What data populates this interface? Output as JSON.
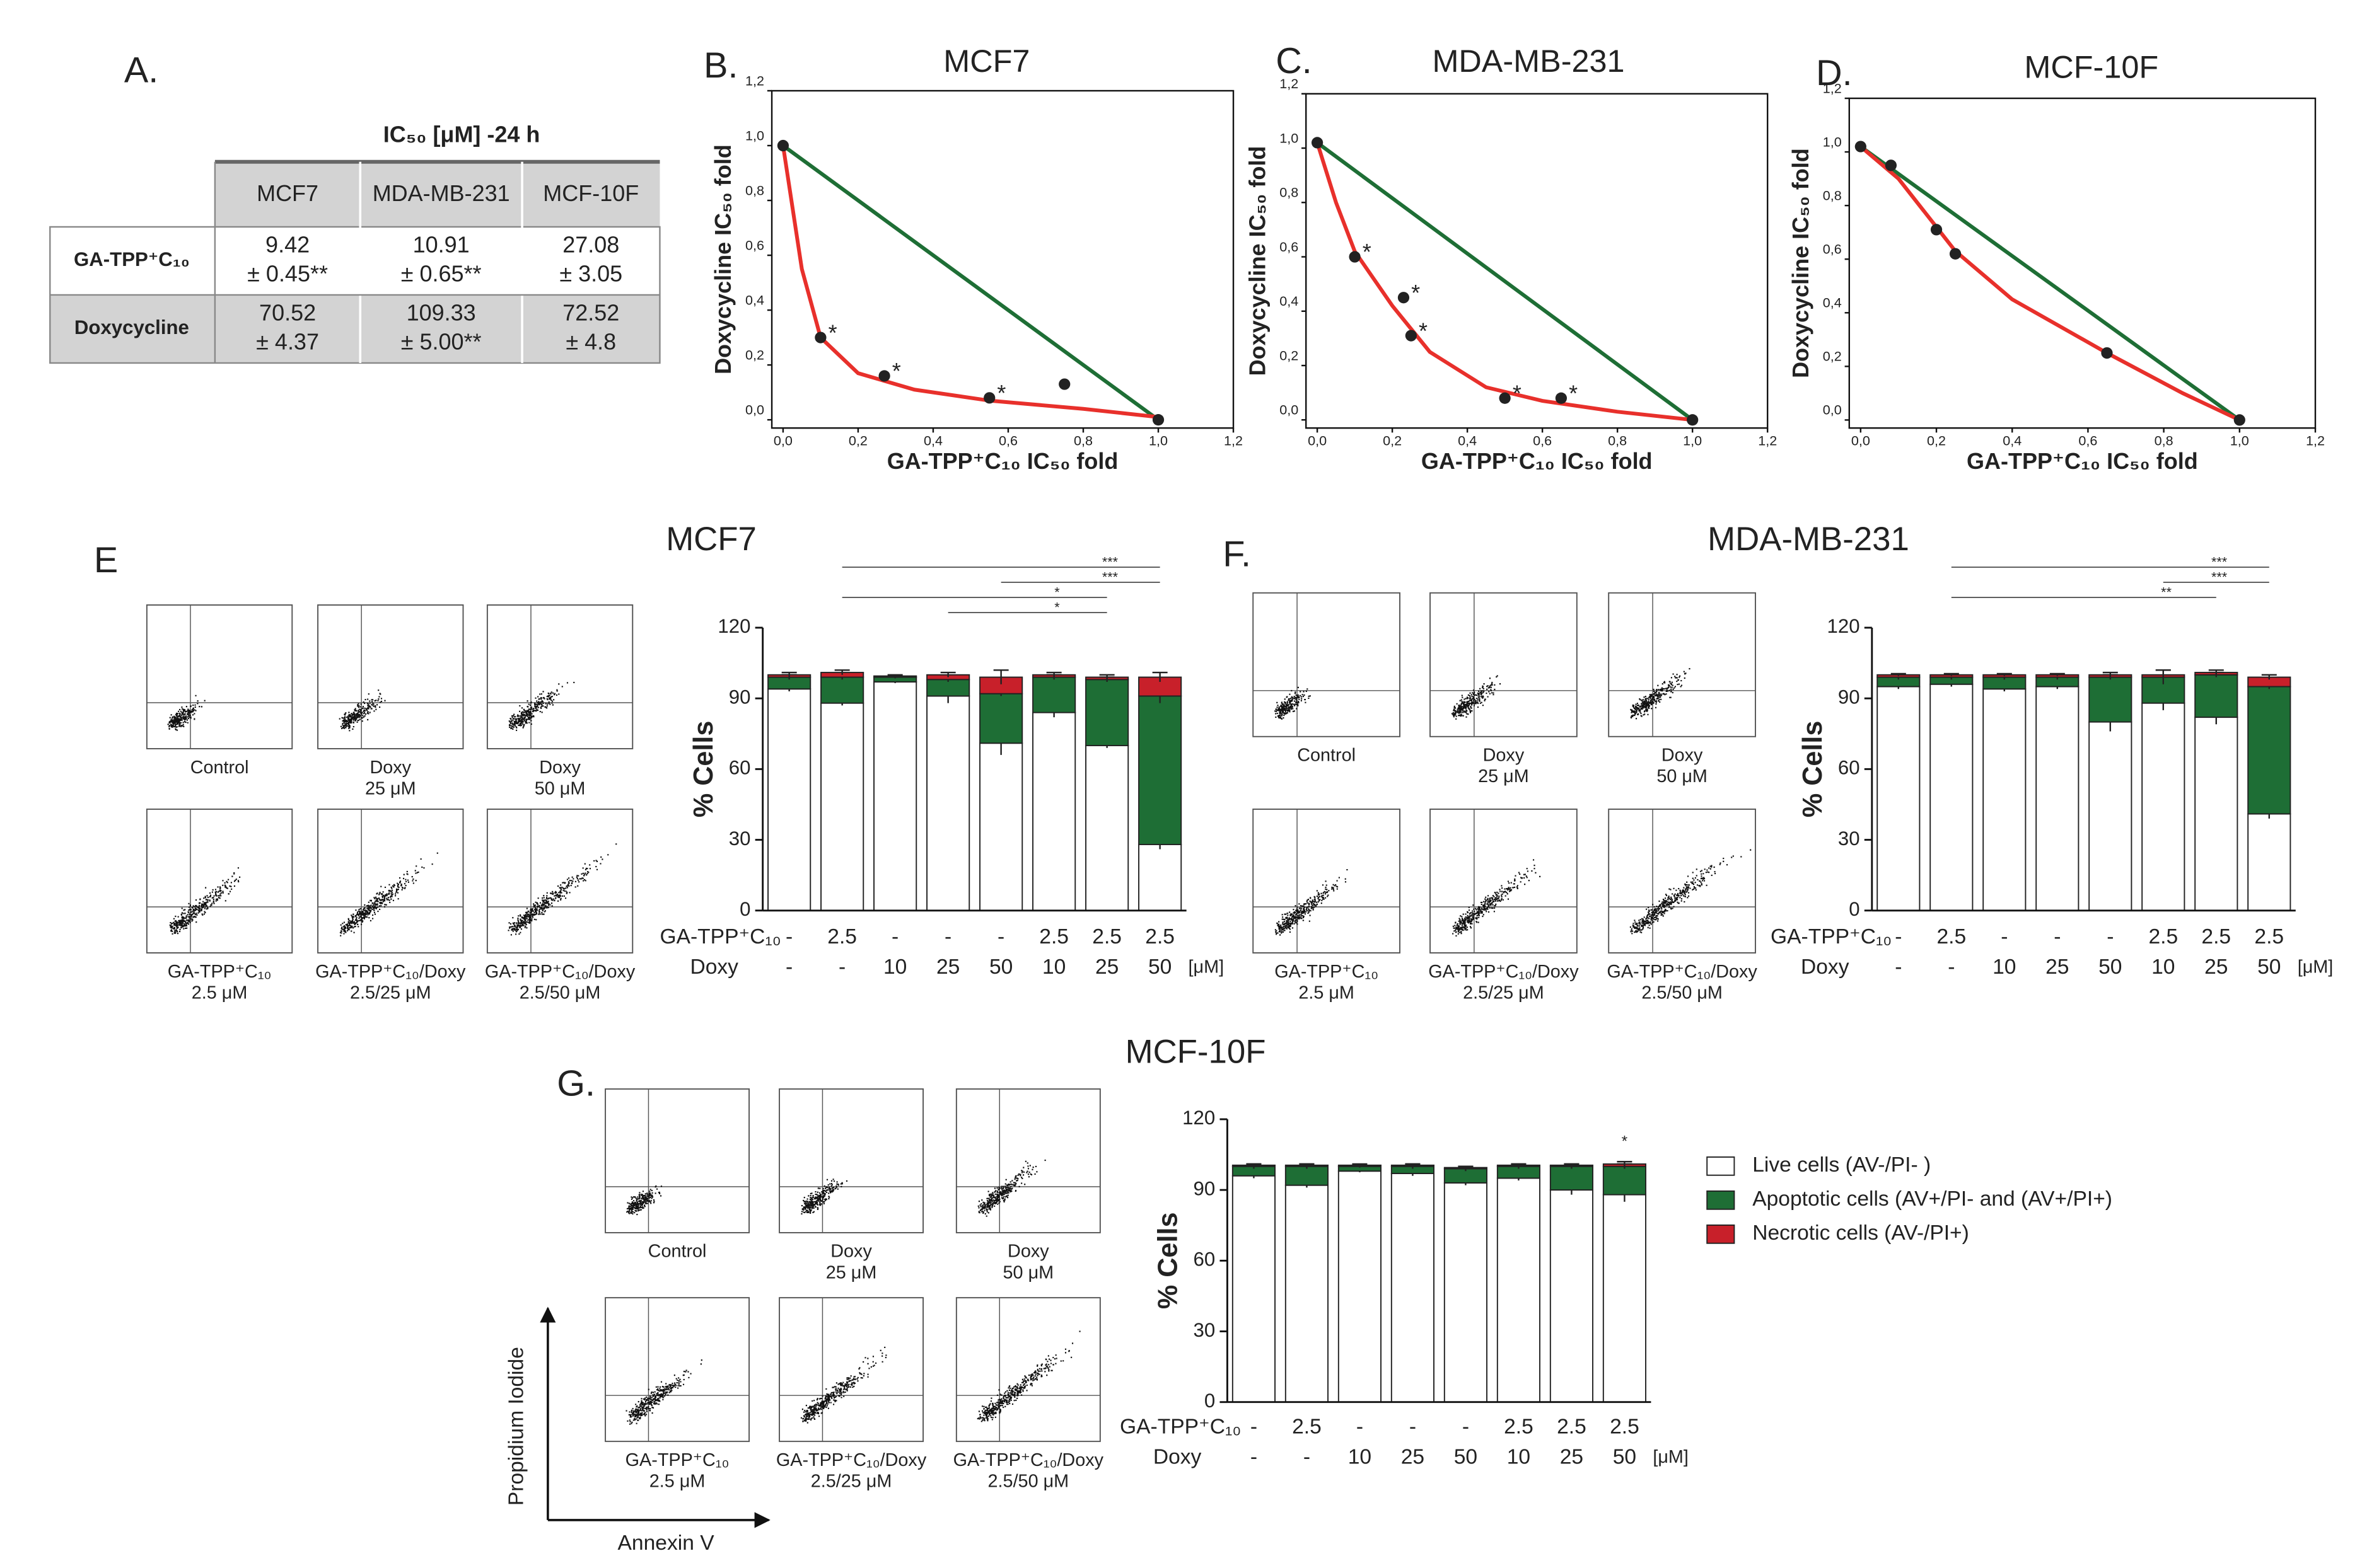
{
  "panel_labels": [
    "A.",
    "B.",
    "C.",
    "D.",
    "E",
    "F.",
    "G."
  ],
  "table": {
    "title": "IC₅₀ [μM] -24 h",
    "columns": [
      "MCF7",
      "MDA-MB-231",
      "MCF-10F"
    ],
    "rows": [
      {
        "label": "GA-TPP⁺C₁₀",
        "cells": [
          [
            "9.42",
            "± 0.45**"
          ],
          [
            "10.91",
            "± 0.65**"
          ],
          [
            "27.08",
            "± 3.05"
          ]
        ]
      },
      {
        "label": "Doxycycline",
        "cells": [
          [
            "70.52",
            "± 4.37"
          ],
          [
            "109.33",
            "± 5.00**"
          ],
          [
            "72.52",
            "± 4.8"
          ]
        ]
      }
    ]
  },
  "flow_panels": [
    {
      "captions": [
        [
          "Control"
        ],
        [
          "Doxy",
          "25 μM"
        ],
        [
          "Doxy",
          "50 μM"
        ],
        [
          "GA-TPP⁺C₁₀",
          "2.5 μM"
        ],
        [
          "GA-TPP⁺C₁₀/Doxy",
          "2.5/25 μM"
        ],
        [
          "GA-TPP⁺C₁₀/Doxy",
          "2.5/50 μM"
        ]
      ]
    },
    {
      "captions": [
        [
          "Control"
        ],
        [
          "Doxy",
          "25 μM"
        ],
        [
          "Doxy",
          "50 μM"
        ],
        [
          "GA-TPP⁺C₁₀",
          "2.5 μM"
        ],
        [
          "GA-TPP⁺C₁₀/Doxy",
          "2.5/25 μM"
        ],
        [
          "GA-TPP⁺C₁₀/Doxy",
          "2.5/50 μM"
        ]
      ]
    },
    {
      "captions": [
        [
          "Control"
        ],
        [
          "Doxy",
          "25 μM"
        ],
        [
          "Doxy",
          "50 μM"
        ],
        [
          "GA-TPP⁺C₁₀",
          "2.5 μM"
        ],
        [
          "GA-TPP⁺C₁₀/Doxy",
          "2.5/25 μM"
        ],
        [
          "GA-TPP⁺C₁₀/Doxy",
          "2.5/50 μM"
        ]
      ],
      "ylabel": "Propidium Iodide",
      "xlabel": "Annexin V"
    }
  ],
  "chart_data": [
    {
      "type": "scatter",
      "title": "MCF7",
      "xlabel": "GA-TPP⁺C₁₀ IC₅₀ fold",
      "ylabel": "Doxycycline IC₅₀ fold",
      "xlim": [
        -0.03,
        1.2
      ],
      "ylim": [
        -0.03,
        1.2
      ],
      "xticks": [
        {
          "value": 0,
          "label": "0,0"
        },
        {
          "value": 0.2,
          "label": "0,2"
        },
        {
          "value": 0.4,
          "label": "0,4"
        },
        {
          "value": 0.6,
          "label": "0,6"
        },
        {
          "value": 0.8,
          "label": "0,8"
        },
        {
          "value": 1,
          "label": "1,0"
        },
        {
          "value": 1.2,
          "label": "1,2"
        }
      ],
      "yticks": [
        {
          "value": 0,
          "label": "0,0"
        },
        {
          "value": 0.2,
          "label": "0,2"
        },
        {
          "value": 0.4,
          "label": "0,4"
        },
        {
          "value": 0.6,
          "label": "0,6"
        },
        {
          "value": 0.8,
          "label": "0,8"
        },
        {
          "value": 1,
          "label": "1,0"
        },
        {
          "value": 1.2,
          "label": "1,2"
        }
      ],
      "series": [
        {
          "style": "line",
          "color": "#1e6e35",
          "x": [
            0,
            1
          ],
          "values": [
            1,
            0
          ]
        },
        {
          "style": "line",
          "color": "#e8302b",
          "x": [
            0,
            0.05,
            0.1,
            0.2,
            0.35,
            0.55,
            0.8,
            1
          ],
          "values": [
            1,
            0.55,
            0.3,
            0.17,
            0.11,
            0.07,
            0.04,
            0.01
          ]
        },
        {
          "style": "points",
          "color": "#222222",
          "x": [
            0,
            0.1,
            0.27,
            0.55,
            0.75,
            1
          ],
          "values": [
            1,
            0.3,
            0.16,
            0.08,
            0.13,
            0
          ],
          "point_labels": [
            null,
            "*",
            "*",
            "*",
            null,
            null
          ]
        }
      ]
    },
    {
      "type": "scatter",
      "title": "MDA-MB-231",
      "xlabel": "GA-TPP⁺C₁₀ IC₅₀ fold",
      "ylabel": "Doxycycline IC₅₀ fold",
      "xlim": [
        -0.03,
        1.2
      ],
      "ylim": [
        -0.03,
        1.2
      ],
      "xticks": [
        {
          "value": 0,
          "label": "0,0"
        },
        {
          "value": 0.2,
          "label": "0,2"
        },
        {
          "value": 0.4,
          "label": "0,4"
        },
        {
          "value": 0.6,
          "label": "0,6"
        },
        {
          "value": 0.8,
          "label": "0,8"
        },
        {
          "value": 1,
          "label": "1,0"
        },
        {
          "value": 1.2,
          "label": "1,2"
        }
      ],
      "yticks": [
        {
          "value": 0,
          "label": "0,0"
        },
        {
          "value": 0.2,
          "label": "0,2"
        },
        {
          "value": 0.4,
          "label": "0,4"
        },
        {
          "value": 0.6,
          "label": "0,6"
        },
        {
          "value": 0.8,
          "label": "0,8"
        },
        {
          "value": 1,
          "label": "1,0"
        },
        {
          "value": 1.2,
          "label": "1,2"
        }
      ],
      "series": [
        {
          "style": "line",
          "color": "#1e6e35",
          "x": [
            0,
            1
          ],
          "values": [
            1.02,
            0
          ]
        },
        {
          "style": "line",
          "color": "#e8302b",
          "x": [
            0,
            0.05,
            0.1,
            0.2,
            0.3,
            0.45,
            0.6,
            0.8,
            1
          ],
          "values": [
            1.02,
            0.8,
            0.62,
            0.42,
            0.25,
            0.12,
            0.07,
            0.03,
            0
          ]
        },
        {
          "style": "points",
          "color": "#222222",
          "x": [
            0,
            0.1,
            0.23,
            0.25,
            0.5,
            0.65,
            1
          ],
          "values": [
            1.02,
            0.6,
            0.45,
            0.31,
            0.08,
            0.08,
            0
          ],
          "point_labels": [
            null,
            "*",
            "*",
            "*",
            "*",
            "*",
            null
          ]
        }
      ]
    },
    {
      "type": "scatter",
      "title": "MCF-10F",
      "xlabel": "GA-TPP⁺C₁₀ IC₅₀ fold",
      "ylabel": "Doxycycline IC₅₀ fold",
      "xlim": [
        -0.03,
        1.2
      ],
      "ylim": [
        -0.03,
        1.2
      ],
      "xticks": [
        {
          "value": 0,
          "label": "0,0"
        },
        {
          "value": 0.2,
          "label": "0,2"
        },
        {
          "value": 0.4,
          "label": "0,4"
        },
        {
          "value": 0.6,
          "label": "0,6"
        },
        {
          "value": 0.8,
          "label": "0,8"
        },
        {
          "value": 1,
          "label": "1,0"
        },
        {
          "value": 1.2,
          "label": "1,2"
        }
      ],
      "yticks": [
        {
          "value": 0,
          "label": "0,0"
        },
        {
          "value": 0.2,
          "label": "0,2"
        },
        {
          "value": 0.4,
          "label": "0,4"
        },
        {
          "value": 0.6,
          "label": "0,6"
        },
        {
          "value": 0.8,
          "label": "0,8"
        },
        {
          "value": 1,
          "label": "1,0"
        },
        {
          "value": 1.2,
          "label": "1,2"
        }
      ],
      "series": [
        {
          "style": "line",
          "color": "#1e6e35",
          "x": [
            0,
            1
          ],
          "values": [
            1.02,
            0
          ]
        },
        {
          "style": "line",
          "color": "#e8302b",
          "x": [
            0,
            0.1,
            0.2,
            0.25,
            0.4,
            0.65,
            0.85,
            1
          ],
          "values": [
            1.02,
            0.9,
            0.72,
            0.63,
            0.45,
            0.25,
            0.1,
            0
          ]
        },
        {
          "style": "points",
          "color": "#222222",
          "x": [
            0,
            0.08,
            0.2,
            0.25,
            0.65,
            1
          ],
          "values": [
            1.02,
            0.95,
            0.71,
            0.62,
            0.25,
            0
          ],
          "point_labels": [
            null,
            null,
            null,
            null,
            null,
            null
          ]
        }
      ]
    },
    {
      "type": "bar",
      "stacked": true,
      "title": "MCF7",
      "ylabel": "% Cells",
      "category_labels": [
        "GA-TPP⁺C₁₀",
        "Doxy"
      ],
      "unit": "[μM]",
      "categories": [
        [
          "-",
          "-"
        ],
        [
          "2.5",
          "-"
        ],
        [
          "-",
          "10"
        ],
        [
          "-",
          "25"
        ],
        [
          "-",
          "50"
        ],
        [
          "2.5",
          "10"
        ],
        [
          "2.5",
          "25"
        ],
        [
          "2.5",
          "50"
        ]
      ],
      "ylim": [
        0,
        120
      ],
      "yticks": [
        0,
        30,
        60,
        90,
        120
      ],
      "series": [
        {
          "color": "#ffffff",
          "values": [
            94,
            88,
            97,
            91,
            71,
            84,
            70,
            28
          ],
          "errors": [
            1,
            1,
            0.5,
            3,
            5,
            2,
            1,
            2
          ]
        },
        {
          "color": "#1e6e35",
          "values": [
            5,
            11,
            2,
            7,
            21,
            15,
            28,
            63
          ],
          "errors": [
            1,
            1,
            0.5,
            1,
            1,
            1,
            1,
            3
          ]
        },
        {
          "color": "#c8202a",
          "values": [
            1,
            2,
            0.5,
            2,
            7,
            1,
            1,
            8
          ],
          "errors": [
            1,
            1,
            0.5,
            1,
            3,
            1,
            1,
            2
          ]
        }
      ],
      "comparisons": [
        {
          "from": 1,
          "to": 7,
          "label": "***"
        },
        {
          "from": 4,
          "to": 7,
          "label": "***"
        },
        {
          "from": 1,
          "to": 6,
          "label": "*"
        },
        {
          "from": 3,
          "to": 6,
          "label": "*"
        }
      ]
    },
    {
      "type": "bar",
      "stacked": true,
      "title": "MDA-MB-231",
      "ylabel": "% Cells",
      "category_labels": [
        "GA-TPP⁺C₁₀",
        "Doxy"
      ],
      "unit": "[μM]",
      "categories": [
        [
          "-",
          "-"
        ],
        [
          "2.5",
          "-"
        ],
        [
          "-",
          "10"
        ],
        [
          "-",
          "25"
        ],
        [
          "-",
          "50"
        ],
        [
          "2.5",
          "10"
        ],
        [
          "2.5",
          "25"
        ],
        [
          "2.5",
          "50"
        ]
      ],
      "ylim": [
        0,
        120
      ],
      "yticks": [
        0,
        30,
        60,
        90,
        120
      ],
      "series": [
        {
          "color": "#ffffff",
          "values": [
            95,
            96,
            94,
            95,
            80,
            88,
            82,
            41
          ],
          "errors": [
            1,
            1,
            1,
            1,
            4,
            3,
            3,
            2
          ]
        },
        {
          "color": "#1e6e35",
          "values": [
            4,
            3,
            5,
            4,
            19,
            11,
            18,
            54
          ],
          "errors": [
            1,
            1,
            1,
            1,
            1,
            3,
            1,
            1
          ]
        },
        {
          "color": "#c8202a",
          "values": [
            1,
            1,
            1,
            1,
            1,
            1,
            1,
            4
          ],
          "errors": [
            0.5,
            0.5,
            0.5,
            0.5,
            1,
            2,
            1,
            1
          ]
        }
      ],
      "comparisons": [
        {
          "from": 1,
          "to": 7,
          "label": "***"
        },
        {
          "from": 5,
          "to": 7,
          "label": "***"
        },
        {
          "from": 1,
          "to": 6,
          "label": "**"
        }
      ]
    },
    {
      "type": "bar",
      "stacked": true,
      "title": "MCF-10F",
      "ylabel": "% Cells",
      "category_labels": [
        "GA-TPP⁺C₁₀",
        "Doxy"
      ],
      "unit": "[μM]",
      "categories": [
        [
          "-",
          "-"
        ],
        [
          "2.5",
          "-"
        ],
        [
          "-",
          "10"
        ],
        [
          "-",
          "25"
        ],
        [
          "-",
          "50"
        ],
        [
          "2.5",
          "10"
        ],
        [
          "2.5",
          "25"
        ],
        [
          "2.5",
          "50"
        ]
      ],
      "ylim": [
        0,
        120
      ],
      "yticks": [
        0,
        30,
        60,
        90,
        120
      ],
      "series": [
        {
          "name": "Live cells (AV-/PI- )",
          "color": "#ffffff",
          "values": [
            96,
            92,
            98,
            97,
            93,
            95,
            90,
            88
          ],
          "errors": [
            1,
            1,
            0.5,
            1,
            1,
            1,
            2,
            3
          ]
        },
        {
          "name": "Apoptotic cells (AV+/PI- and (AV+/PI+)",
          "color": "#1e6e35",
          "values": [
            4,
            8,
            2,
            3,
            6,
            5,
            10,
            12
          ],
          "errors": [
            1,
            1,
            0.5,
            1,
            1,
            1,
            1,
            1
          ]
        },
        {
          "name": "Necrotic cells (AV-/PI+)",
          "color": "#c8202a",
          "values": [
            0.5,
            0.5,
            0.5,
            0.5,
            0.5,
            0.5,
            0.5,
            1
          ],
          "errors": [
            0.5,
            0.5,
            0.5,
            0.5,
            0.5,
            0.5,
            0.5,
            1
          ]
        }
      ],
      "annotations": [
        {
          "category": 7,
          "label": "*"
        }
      ]
    }
  ]
}
